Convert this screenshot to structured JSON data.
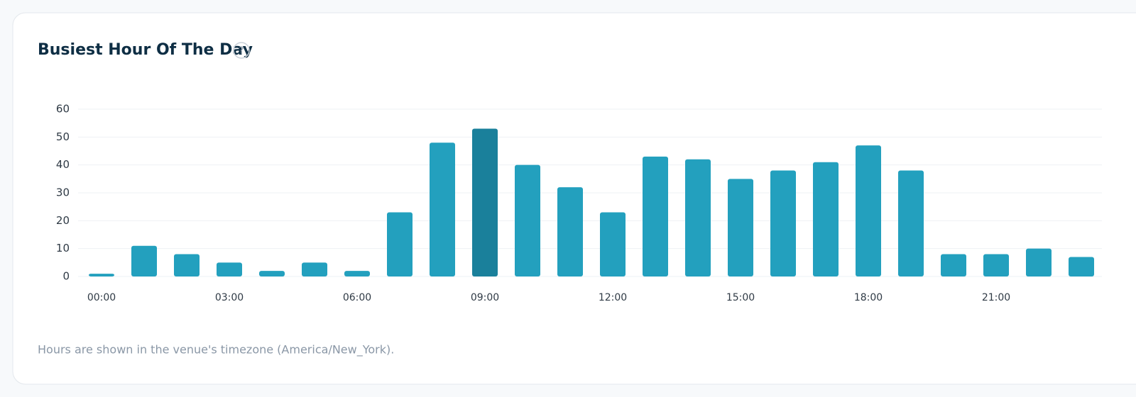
{
  "chart_data": {
    "type": "bar",
    "title": "Busiest Hour Of The Day",
    "help_icon": "?",
    "categories": [
      "00:00",
      null,
      null,
      "03:00",
      null,
      null,
      "06:00",
      null,
      null,
      "09:00",
      null,
      null,
      "12:00",
      null,
      null,
      "15:00",
      null,
      null,
      "18:00",
      null,
      null,
      "21:00",
      null,
      null
    ],
    "values": [
      1,
      11,
      8,
      5,
      2,
      5,
      2,
      23,
      48,
      53,
      40,
      32,
      23,
      43,
      42,
      35,
      38,
      41,
      47,
      38,
      8,
      8,
      10,
      7
    ],
    "colors": [
      "#23a0be",
      "#23a0be",
      "#23a0be",
      "#23a0be",
      "#23a0be",
      "#23a0be",
      "#23a0be",
      "#23a0be",
      "#23a0be",
      "#1a809b",
      "#23a0be",
      "#23a0be",
      "#23a0be",
      "#23a0be",
      "#23a0be",
      "#23a0be",
      "#23a0be",
      "#23a0be",
      "#23a0be",
      "#23a0be",
      "#23a0be",
      "#23a0be",
      "#23a0be",
      "#23a0be"
    ],
    "ylim": [
      0,
      60
    ],
    "yticks": [
      0,
      10,
      20,
      30,
      40,
      50,
      60
    ],
    "grid": true,
    "footnote": "Hours are shown in the venue's timezone (America/New_York)."
  }
}
